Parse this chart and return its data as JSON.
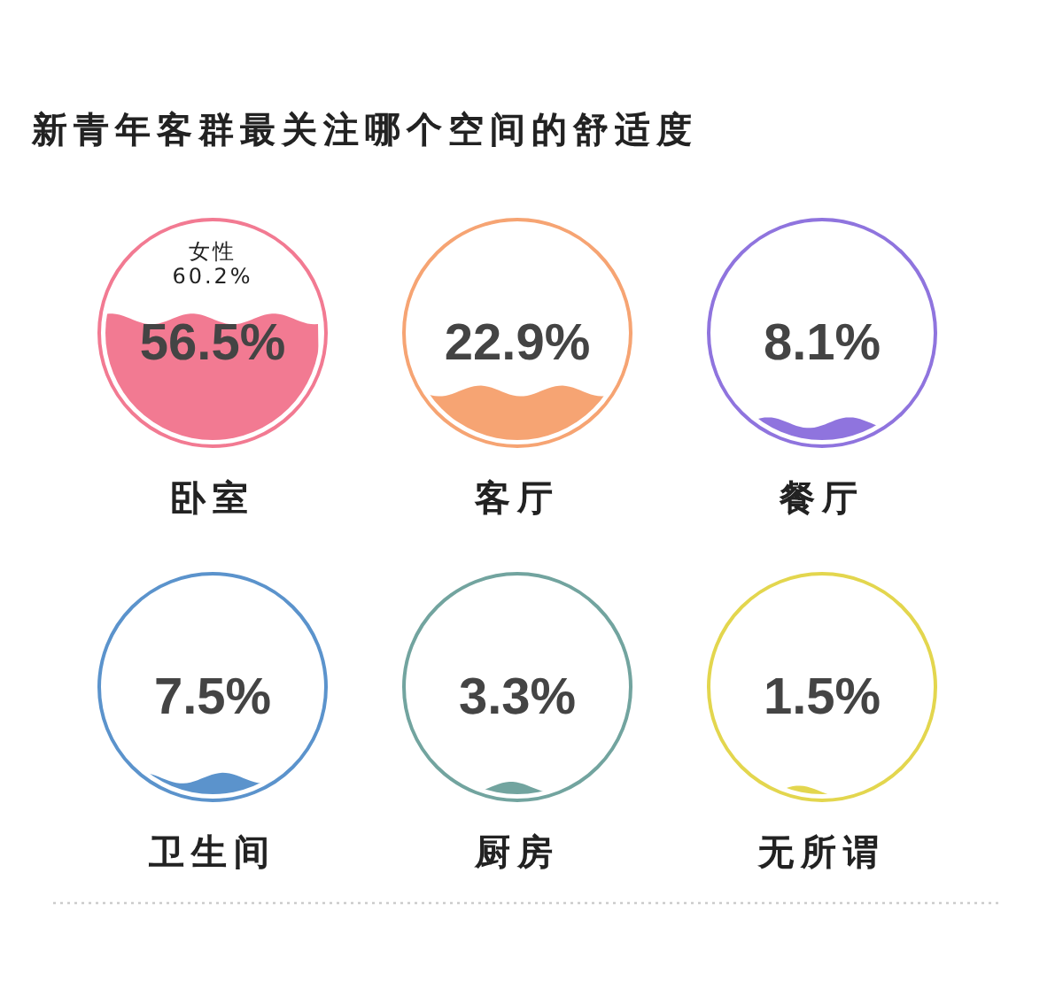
{
  "chart_data": {
    "type": "other",
    "title": "新青年客群最关注哪个空间的舒适度",
    "categories": [
      "卧室",
      "客厅",
      "餐厅",
      "卫生间",
      "厨房",
      "无所谓"
    ],
    "values": [
      56.5,
      22.9,
      8.1,
      7.5,
      3.3,
      1.5
    ],
    "value_labels": [
      "56.5%",
      "22.9%",
      "8.1%",
      "7.5%",
      "3.3%",
      "1.5%"
    ],
    "colors": [
      "#f27a92",
      "#f6a473",
      "#8f74de",
      "#5b93cc",
      "#72a49f",
      "#e3d64e"
    ],
    "annotations": [
      {
        "text": "女性\n60.2%",
        "x": "卧室"
      }
    ]
  }
}
